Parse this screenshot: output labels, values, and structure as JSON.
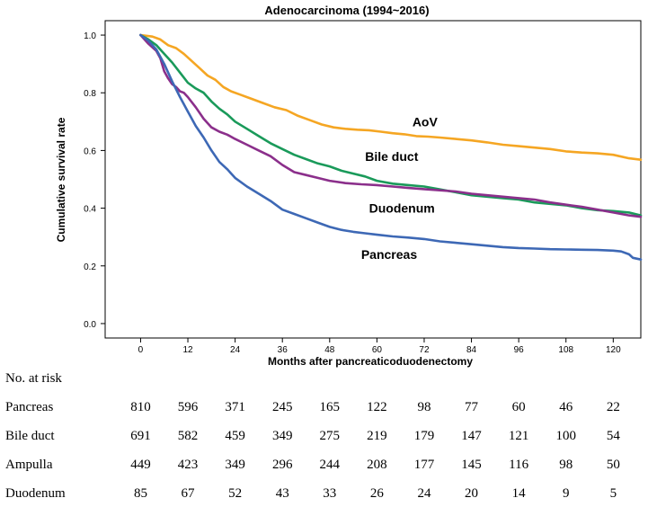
{
  "chart_data": {
    "type": "line",
    "title": "Adenocarcinoma (1994~2016)",
    "xlabel": "Months after pancreaticoduodenectomy",
    "ylabel": "Cumulative survival rate",
    "xlim": [
      -9,
      127
    ],
    "ylim": [
      -0.05,
      1.05
    ],
    "xticks": [
      0,
      12,
      24,
      36,
      48,
      60,
      72,
      84,
      96,
      108,
      120
    ],
    "yticks": [
      0.0,
      0.2,
      0.4,
      0.6,
      0.8,
      1.0
    ],
    "xtick_labels": [
      "0",
      "12",
      "24",
      "36",
      "48",
      "60",
      "72",
      "84",
      "96",
      "108",
      "120"
    ],
    "ytick_labels": [
      "0.0",
      "0.2",
      "0.4",
      "0.6",
      "0.8",
      "1.0"
    ],
    "series": [
      {
        "name": "AoV",
        "label": "AoV",
        "color": "#f5a623",
        "label_at": [
          69,
          0.7
        ],
        "x": [
          0,
          3,
          5,
          7,
          9,
          11,
          13,
          15,
          17,
          19,
          21,
          23,
          25,
          28,
          31,
          34,
          37,
          40,
          43,
          46,
          49,
          52,
          55,
          58,
          61,
          64,
          67,
          70,
          73,
          76,
          80,
          84,
          88,
          92,
          96,
          100,
          104,
          108,
          112,
          116,
          120,
          124,
          127
        ],
        "y": [
          1.0,
          0.995,
          0.985,
          0.965,
          0.955,
          0.935,
          0.91,
          0.885,
          0.86,
          0.845,
          0.82,
          0.805,
          0.795,
          0.78,
          0.765,
          0.75,
          0.74,
          0.72,
          0.705,
          0.69,
          0.68,
          0.675,
          0.672,
          0.67,
          0.665,
          0.66,
          0.656,
          0.65,
          0.648,
          0.645,
          0.64,
          0.635,
          0.628,
          0.62,
          0.615,
          0.61,
          0.605,
          0.597,
          0.593,
          0.59,
          0.585,
          0.573,
          0.568
        ]
      },
      {
        "name": "Bile duct",
        "label": "Bile duct",
        "color": "#1a9a5a",
        "label_at": [
          57,
          0.58
        ],
        "x": [
          0,
          2,
          4,
          6,
          8,
          10,
          12,
          14,
          16,
          18,
          20,
          22,
          24,
          27,
          30,
          33,
          36,
          39,
          42,
          45,
          48,
          51,
          54,
          57,
          60,
          64,
          68,
          72,
          76,
          80,
          84,
          88,
          92,
          96,
          100,
          104,
          108,
          112,
          116,
          120,
          124,
          127
        ],
        "y": [
          1.0,
          0.985,
          0.965,
          0.935,
          0.905,
          0.87,
          0.835,
          0.815,
          0.8,
          0.77,
          0.745,
          0.725,
          0.7,
          0.675,
          0.65,
          0.625,
          0.605,
          0.585,
          0.57,
          0.555,
          0.545,
          0.53,
          0.52,
          0.51,
          0.495,
          0.485,
          0.48,
          0.475,
          0.465,
          0.455,
          0.445,
          0.44,
          0.435,
          0.43,
          0.42,
          0.415,
          0.41,
          0.4,
          0.393,
          0.39,
          0.385,
          0.375
        ]
      },
      {
        "name": "Duodenum",
        "label": "Duodenum",
        "color": "#8b2f8b",
        "label_at": [
          58,
          0.4
        ],
        "x": [
          0,
          2,
          4,
          5,
          6,
          7,
          8,
          9,
          10,
          11,
          12,
          14,
          16,
          18,
          20,
          22,
          24,
          27,
          30,
          33,
          36,
          39,
          42,
          45,
          48,
          52,
          56,
          60,
          64,
          68,
          72,
          76,
          80,
          84,
          88,
          92,
          96,
          100,
          104,
          108,
          112,
          116,
          120,
          124,
          127
        ],
        "y": [
          1.0,
          0.97,
          0.945,
          0.92,
          0.875,
          0.85,
          0.83,
          0.82,
          0.805,
          0.8,
          0.785,
          0.75,
          0.71,
          0.68,
          0.665,
          0.655,
          0.64,
          0.62,
          0.6,
          0.58,
          0.55,
          0.525,
          0.515,
          0.505,
          0.495,
          0.487,
          0.483,
          0.48,
          0.475,
          0.47,
          0.466,
          0.462,
          0.458,
          0.45,
          0.445,
          0.44,
          0.435,
          0.43,
          0.42,
          0.412,
          0.405,
          0.395,
          0.385,
          0.375,
          0.37
        ]
      },
      {
        "name": "Pancreas",
        "label": "Pancreas",
        "color": "#3d68b5",
        "label_at": [
          56,
          0.24
        ],
        "x": [
          0,
          2,
          4,
          6,
          8,
          10,
          12,
          14,
          16,
          18,
          20,
          22,
          24,
          27,
          30,
          33,
          36,
          39,
          42,
          45,
          48,
          51,
          54,
          57,
          60,
          64,
          68,
          72,
          76,
          80,
          84,
          88,
          92,
          96,
          100,
          104,
          108,
          112,
          116,
          120,
          122,
          124,
          125,
          127
        ],
        "y": [
          1.0,
          0.98,
          0.95,
          0.9,
          0.84,
          0.785,
          0.735,
          0.685,
          0.645,
          0.6,
          0.56,
          0.535,
          0.505,
          0.475,
          0.45,
          0.425,
          0.395,
          0.38,
          0.365,
          0.35,
          0.335,
          0.325,
          0.318,
          0.313,
          0.308,
          0.302,
          0.298,
          0.293,
          0.285,
          0.28,
          0.275,
          0.27,
          0.265,
          0.262,
          0.26,
          0.258,
          0.257,
          0.256,
          0.255,
          0.253,
          0.25,
          0.24,
          0.228,
          0.222
        ]
      }
    ]
  },
  "risk_table": {
    "title": "No. at risk",
    "months": [
      0,
      12,
      24,
      36,
      48,
      60,
      72,
      84,
      96,
      108,
      120
    ],
    "rows": [
      {
        "name": "Pancreas",
        "values": [
          "810",
          "596",
          "371",
          "245",
          "165",
          "122",
          "98",
          "77",
          "60",
          "46",
          "22"
        ]
      },
      {
        "name": "Bile duct",
        "values": [
          "691",
          "582",
          "459",
          "349",
          "275",
          "219",
          "179",
          "147",
          "121",
          "100",
          "54"
        ]
      },
      {
        "name": "Ampulla",
        "values": [
          "449",
          "423",
          "349",
          "296",
          "244",
          "208",
          "177",
          "145",
          "116",
          "98",
          "50"
        ]
      },
      {
        "name": "Duodenum",
        "values": [
          "85",
          "67",
          "52",
          "43",
          "33",
          "26",
          "24",
          "20",
          "14",
          "9",
          "5"
        ]
      }
    ]
  }
}
